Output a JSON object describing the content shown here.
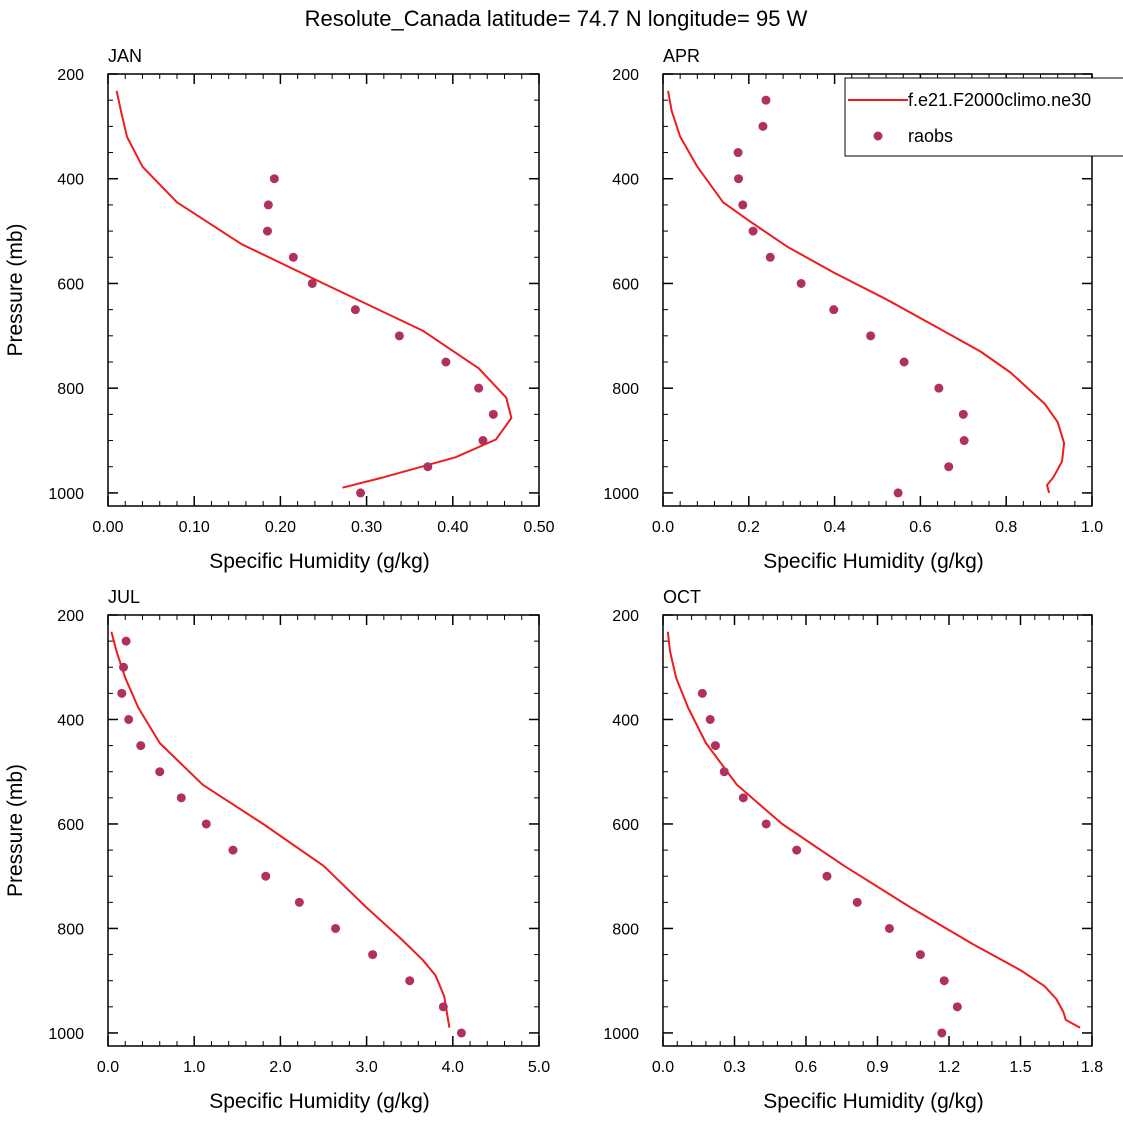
{
  "figure": {
    "title": "Resolute_Canada  latitude= 74.7 N longitude= 95 W"
  },
  "colors": {
    "model": "#ee1c1c",
    "obs": "#b03060"
  },
  "legend": {
    "placement": "top-right of APR panel",
    "model_label": "f.e21.F2000climo.ne30",
    "obs_label": "raobs"
  },
  "chart_data": [
    {
      "type": "line",
      "title": "JAN",
      "xlabel": "Specific Humidity (g/kg)",
      "ylabel": "Pressure (mb)",
      "xlim": [
        0,
        0.5
      ],
      "ylim": [
        200,
        1025
      ],
      "y_inverted": true,
      "xticks": [
        0,
        0.1,
        0.2,
        0.3,
        0.4,
        0.5
      ],
      "xtick_labels": [
        "0.00",
        "0.10",
        "0.20",
        "0.30",
        "0.40",
        "0.50"
      ],
      "yticks": [
        200,
        400,
        600,
        800,
        1000
      ],
      "ytick_labels": [
        "200",
        "400",
        "600",
        "800",
        "1000"
      ],
      "series": [
        {
          "name": "f.e21.F2000climo.ne30",
          "kind": "line",
          "x": [
            0.01,
            0.015,
            0.022,
            0.04,
            0.08,
            0.155,
            0.25,
            0.365,
            0.43,
            0.462,
            0.468,
            0.45,
            0.403,
            0.32,
            0.272
          ],
          "y": [
            232,
            270,
            320,
            377,
            445,
            525,
            600,
            690,
            762,
            818,
            857,
            898,
            932,
            970,
            990
          ]
        },
        {
          "name": "raobs",
          "kind": "scatter",
          "x": [
            0.193,
            0.186,
            0.185,
            0.215,
            0.237,
            0.287,
            0.338,
            0.392,
            0.43,
            0.447,
            0.435,
            0.371,
            0.293
          ],
          "y": [
            400,
            450,
            500,
            550,
            600,
            650,
            700,
            750,
            800,
            850,
            900,
            950,
            1000
          ]
        }
      ]
    },
    {
      "type": "line",
      "title": "APR",
      "xlabel": "Specific Humidity (g/kg)",
      "ylabel": "",
      "xlim": [
        0,
        1.0
      ],
      "ylim": [
        200,
        1025
      ],
      "y_inverted": true,
      "xticks": [
        0,
        0.2,
        0.4,
        0.6,
        0.8,
        1.0
      ],
      "xtick_labels": [
        "0.0",
        "0.2",
        "0.4",
        "0.6",
        "0.8",
        "1.0"
      ],
      "yticks": [
        200,
        400,
        600,
        800,
        1000
      ],
      "ytick_labels": [
        "200",
        "400",
        "600",
        "800",
        "1000"
      ],
      "series": [
        {
          "name": "f.e21.F2000climo.ne30",
          "kind": "line",
          "x": [
            0.012,
            0.02,
            0.04,
            0.08,
            0.14,
            0.2,
            0.29,
            0.4,
            0.52,
            0.63,
            0.74,
            0.81,
            0.89,
            0.92,
            0.935,
            0.93,
            0.91,
            0.895,
            0.9
          ],
          "y": [
            232,
            270,
            320,
            377,
            445,
            480,
            530,
            580,
            630,
            680,
            730,
            770,
            830,
            865,
            905,
            940,
            970,
            985,
            1000
          ]
        },
        {
          "name": "raobs",
          "kind": "scatter",
          "x": [
            0.24,
            0.233,
            0.175,
            0.176,
            0.186,
            0.21,
            0.25,
            0.322,
            0.398,
            0.484,
            0.562,
            0.643,
            0.7,
            0.702,
            0.666,
            0.548
          ],
          "y": [
            250,
            300,
            350,
            400,
            450,
            500,
            550,
            600,
            650,
            700,
            750,
            800,
            850,
            900,
            950,
            1000
          ]
        }
      ]
    },
    {
      "type": "line",
      "title": "JUL",
      "xlabel": "Specific Humidity (g/kg)",
      "ylabel": "Pressure (mb)",
      "xlim": [
        0,
        5.0
      ],
      "ylim": [
        200,
        1025
      ],
      "y_inverted": true,
      "xticks": [
        0,
        1,
        2,
        3,
        4,
        5
      ],
      "xtick_labels": [
        "0.0",
        "1.0",
        "2.0",
        "3.0",
        "4.0",
        "5.0"
      ],
      "yticks": [
        200,
        400,
        600,
        800,
        1000
      ],
      "ytick_labels": [
        "200",
        "400",
        "600",
        "800",
        "1000"
      ],
      "series": [
        {
          "name": "f.e21.F2000climo.ne30",
          "kind": "line",
          "x": [
            0.04,
            0.1,
            0.2,
            0.35,
            0.6,
            1.1,
            1.8,
            2.5,
            3.0,
            3.4,
            3.65,
            3.8,
            3.9,
            3.93,
            3.96
          ],
          "y": [
            232,
            270,
            320,
            377,
            445,
            525,
            600,
            680,
            760,
            820,
            860,
            890,
            930,
            960,
            990
          ]
        },
        {
          "name": "raobs",
          "kind": "scatter",
          "x": [
            0.21,
            0.18,
            0.16,
            0.24,
            0.38,
            0.6,
            0.85,
            1.14,
            1.45,
            1.83,
            2.22,
            2.64,
            3.07,
            3.5,
            3.89,
            4.1
          ],
          "y": [
            250,
            300,
            350,
            400,
            450,
            500,
            550,
            600,
            650,
            700,
            750,
            800,
            850,
            900,
            950,
            1000
          ]
        }
      ]
    },
    {
      "type": "line",
      "title": "OCT",
      "xlabel": "Specific Humidity (g/kg)",
      "ylabel": "",
      "xlim": [
        0,
        1.8
      ],
      "ylim": [
        200,
        1025
      ],
      "y_inverted": true,
      "xticks": [
        0,
        0.3,
        0.6,
        0.9,
        1.2,
        1.5,
        1.8
      ],
      "xtick_labels": [
        "0.0",
        "0.3",
        "0.6",
        "0.9",
        "1.2",
        "1.5",
        "1.8"
      ],
      "yticks": [
        200,
        400,
        600,
        800,
        1000
      ],
      "ytick_labels": [
        "200",
        "400",
        "600",
        "800",
        "1000"
      ],
      "series": [
        {
          "name": "f.e21.F2000climo.ne30",
          "kind": "line",
          "x": [
            0.02,
            0.03,
            0.055,
            0.105,
            0.18,
            0.31,
            0.5,
            0.76,
            1.04,
            1.3,
            1.5,
            1.6,
            1.65,
            1.68,
            1.69,
            1.75
          ],
          "y": [
            232,
            270,
            320,
            377,
            445,
            525,
            600,
            680,
            760,
            830,
            880,
            910,
            935,
            960,
            975,
            990
          ]
        },
        {
          "name": "raobs",
          "kind": "scatter",
          "x": [
            0.165,
            0.198,
            0.22,
            0.257,
            0.337,
            0.433,
            0.561,
            0.688,
            0.815,
            0.95,
            1.08,
            1.18,
            1.235,
            1.17
          ],
          "y": [
            350,
            400,
            450,
            500,
            550,
            600,
            650,
            700,
            750,
            800,
            850,
            900,
            950,
            1000
          ]
        }
      ]
    }
  ]
}
